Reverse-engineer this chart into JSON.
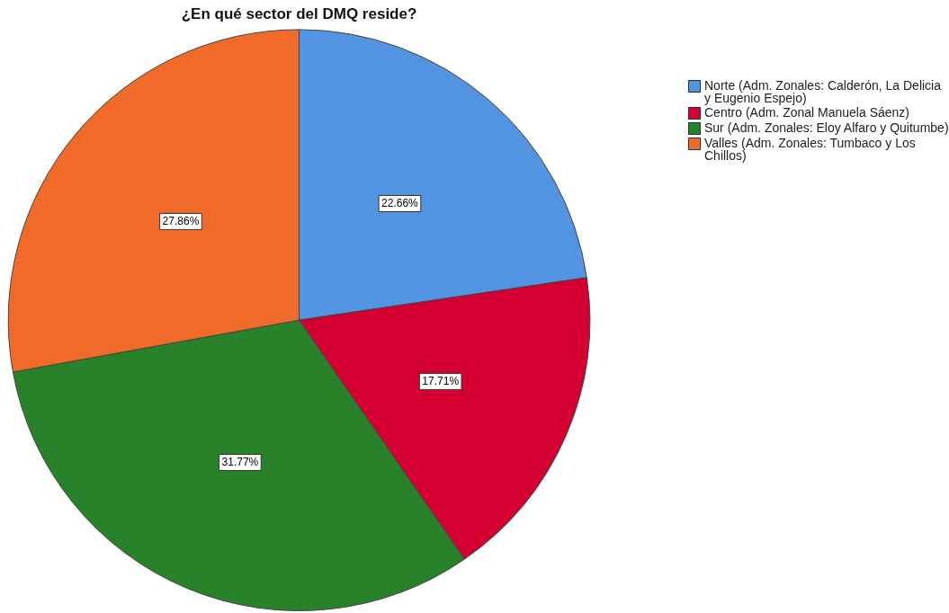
{
  "chart_data": {
    "type": "pie",
    "title": "¿En qué sector del DMQ reside?",
    "categories": [
      "Norte (Adm. Zonales: Calderón, La Delicia y Eugenio Espejo)",
      "Centro (Adm. Zonal Manuela Sáenz)",
      "Sur (Adm. Zonales: Eloy Alfaro y Quitumbe)",
      "Valles (Adm. Zonales: Tumbaco y Los Chillos)"
    ],
    "values": [
      22.66,
      17.71,
      31.77,
      27.86
    ],
    "colors": [
      "#5294e2",
      "#d30031",
      "#27822a",
      "#f06b2a"
    ],
    "value_labels": [
      "22.66%",
      "17.71%",
      "31.77%",
      "27.86%"
    ],
    "legend": "top right"
  }
}
